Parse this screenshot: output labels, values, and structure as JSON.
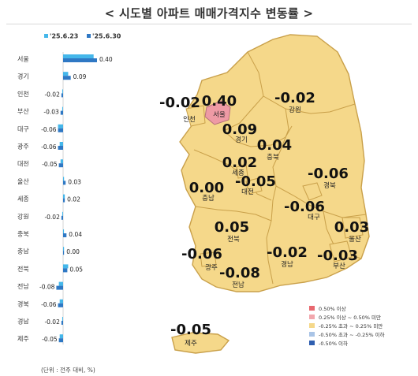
{
  "title": "< 시도별 아파트 매매가격지수 변동률 >",
  "unit_note": "(단위 : 전주 대비, %)",
  "colors": {
    "prev_series": "#45b7ea",
    "curr_series": "#2f78c4",
    "map_yellow": "#f5d88a",
    "map_pink": "#ee9aa5",
    "map_border": "#c9a04a"
  },
  "chart_data": {
    "type": "bar",
    "orientation": "horizontal",
    "categories": [
      "서울",
      "경기",
      "인천",
      "부산",
      "대구",
      "광주",
      "대전",
      "울산",
      "세종",
      "강원",
      "충북",
      "충남",
      "전북",
      "전남",
      "경북",
      "경남",
      "제주"
    ],
    "series": [
      {
        "name": "'25.6.23",
        "values": [
          0.36,
          0.06,
          -0.01,
          -0.01,
          -0.06,
          -0.04,
          -0.03,
          0.0,
          0.02,
          -0.01,
          0.01,
          0.0,
          0.06,
          -0.05,
          -0.04,
          -0.01,
          -0.04
        ]
      },
      {
        "name": "'25.6.30",
        "values": [
          0.4,
          0.09,
          -0.02,
          -0.03,
          -0.06,
          -0.06,
          -0.05,
          0.03,
          0.02,
          -0.02,
          0.04,
          0.0,
          0.05,
          -0.08,
          -0.06,
          -0.02,
          -0.05
        ]
      }
    ],
    "value_labels": [
      "0.40",
      "0.09",
      "-0.02",
      "-0.03",
      "-0.06",
      "-0.06",
      "-0.05",
      "0.03",
      "0.02",
      "-0.02",
      "0.04",
      "0.00",
      "0.05",
      "-0.08",
      "-0.06",
      "-0.02",
      "-0.05"
    ],
    "xlim": [
      -0.1,
      0.45
    ],
    "legend_position": "top"
  },
  "map": {
    "regions": [
      {
        "name": "인천",
        "value": "-0.02",
        "color_key": "map_yellow"
      },
      {
        "name": "서울",
        "value": "0.40",
        "color_key": "map_pink"
      },
      {
        "name": "강원",
        "value": "-0.02",
        "color_key": "map_yellow"
      },
      {
        "name": "경기",
        "value": "0.09",
        "color_key": "map_yellow"
      },
      {
        "name": "충북",
        "value": "0.04",
        "color_key": "map_yellow"
      },
      {
        "name": "세종",
        "value": "0.02",
        "color_key": "map_yellow"
      },
      {
        "name": "경북",
        "value": "-0.06",
        "color_key": "map_yellow"
      },
      {
        "name": "충남",
        "value": "0.00",
        "color_key": "map_yellow"
      },
      {
        "name": "대전",
        "value": "-0.05",
        "color_key": "map_yellow"
      },
      {
        "name": "대구",
        "value": "-0.06",
        "color_key": "map_yellow"
      },
      {
        "name": "전북",
        "value": "0.05",
        "color_key": "map_yellow"
      },
      {
        "name": "울산",
        "value": "0.03",
        "color_key": "map_yellow"
      },
      {
        "name": "광주",
        "value": "-0.06",
        "color_key": "map_yellow"
      },
      {
        "name": "경남",
        "value": "-0.02",
        "color_key": "map_yellow"
      },
      {
        "name": "부산",
        "value": "-0.03",
        "color_key": "map_yellow"
      },
      {
        "name": "전남",
        "value": "-0.08",
        "color_key": "map_yellow"
      },
      {
        "name": "제주",
        "value": "-0.05",
        "color_key": "map_yellow"
      }
    ],
    "legend": [
      {
        "label": "0.50% 이상",
        "color": "#e8686f"
      },
      {
        "label": "0.25% 이상 ~ 0.50% 미만",
        "color": "#f2a7ad"
      },
      {
        "label": "-0.25% 초과 ~ 0.25% 미만",
        "color": "#f5d88a"
      },
      {
        "label": "-0.50% 초과 ~ -0.25% 이하",
        "color": "#a9c4e6"
      },
      {
        "label": "-0.50% 이하",
        "color": "#2f5fb0"
      }
    ]
  }
}
